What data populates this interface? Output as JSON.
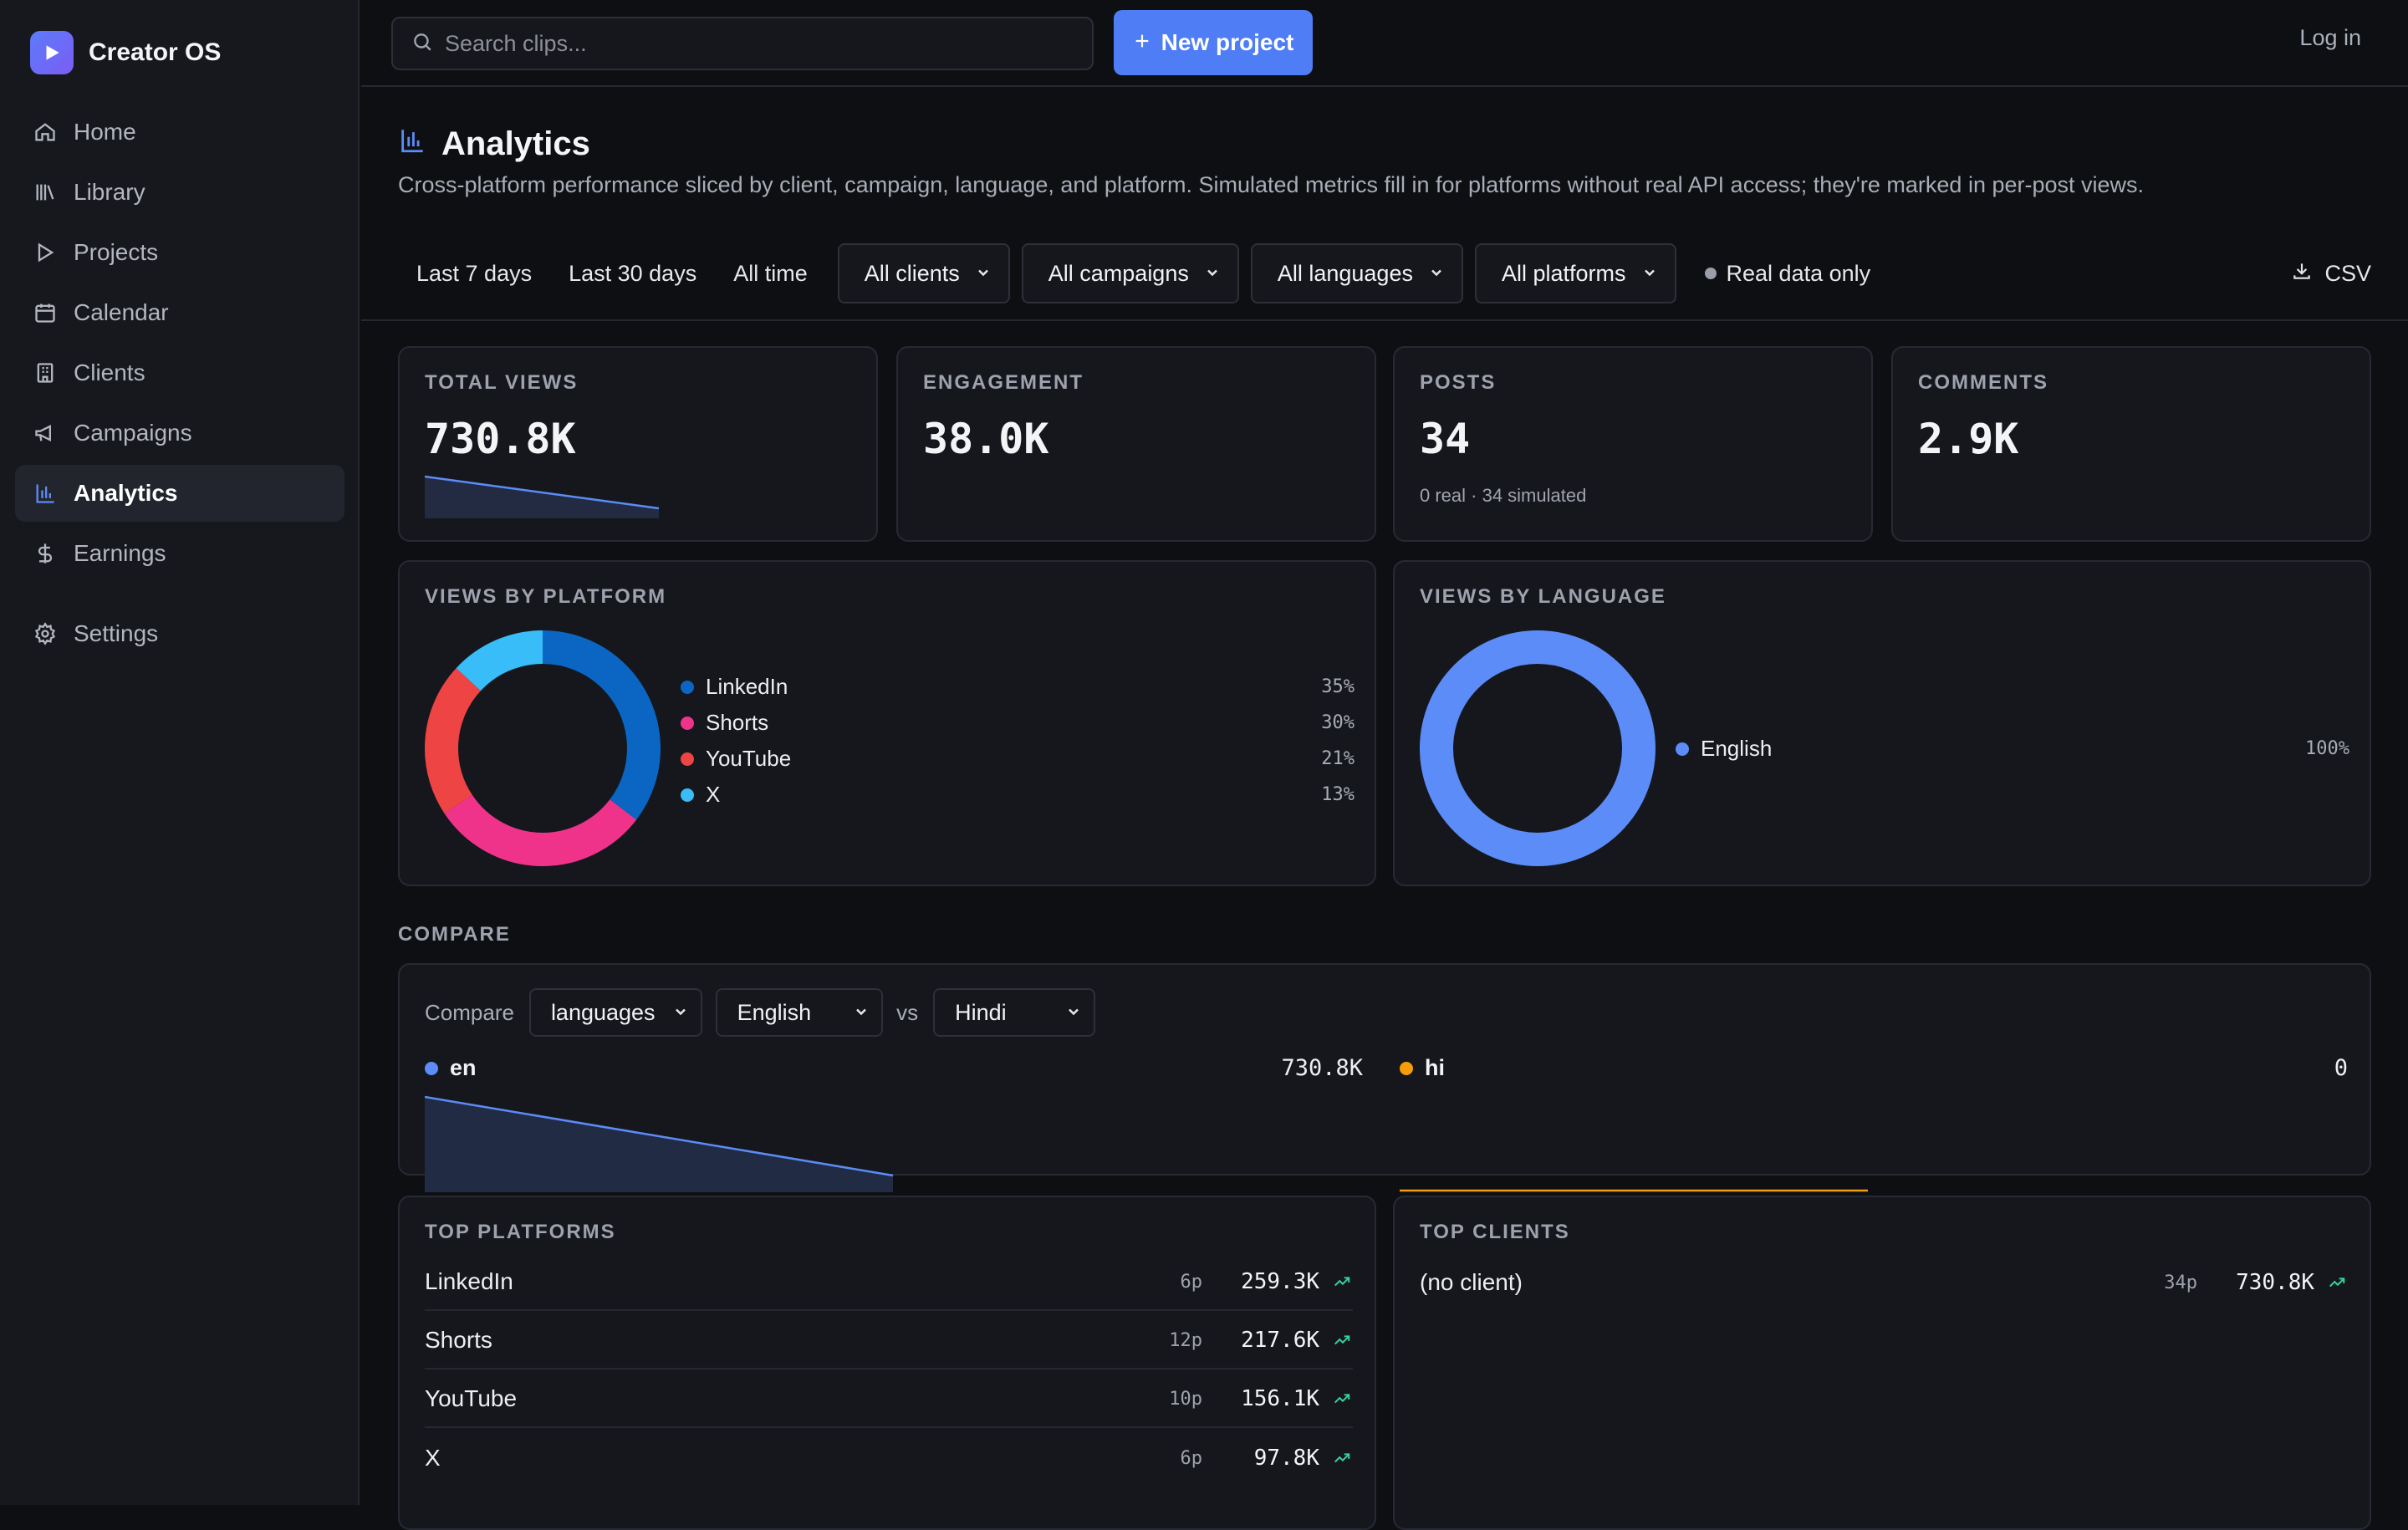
{
  "app": {
    "name": "Creator OS"
  },
  "sidebar": {
    "items": [
      {
        "label": "Home",
        "icon": "home-icon"
      },
      {
        "label": "Library",
        "icon": "library-icon"
      },
      {
        "label": "Projects",
        "icon": "play-icon"
      },
      {
        "label": "Calendar",
        "icon": "calendar-icon"
      },
      {
        "label": "Clients",
        "icon": "building-icon"
      },
      {
        "label": "Campaigns",
        "icon": "megaphone-icon"
      },
      {
        "label": "Analytics",
        "icon": "bar-chart-icon",
        "active": true
      },
      {
        "label": "Earnings",
        "icon": "dollar-icon"
      }
    ],
    "settings": {
      "label": "Settings",
      "icon": "gear-icon"
    }
  },
  "topbar": {
    "search_placeholder": "Search clips...",
    "new_project": "New project",
    "login": "Log in"
  },
  "page": {
    "title": "Analytics",
    "description": "Cross-platform performance sliced by client, campaign, language, and platform. Simulated metrics fill in for platforms without real API access; they're marked in per-post views."
  },
  "filters": {
    "ranges": [
      "Last 7 days",
      "Last 30 days",
      "All time"
    ],
    "clients": "All clients",
    "campaigns": "All campaigns",
    "languages": "All languages",
    "platforms": "All platforms",
    "real_only": "Real data only",
    "csv": "CSV"
  },
  "stats": {
    "total_views": {
      "label": "TOTAL VIEWS",
      "value": "730.8K"
    },
    "engagement": {
      "label": "ENGAGEMENT",
      "value": "38.0K"
    },
    "posts": {
      "label": "POSTS",
      "value": "34",
      "sub": "0 real · 34 simulated"
    },
    "comments": {
      "label": "COMMENTS",
      "value": "2.9K"
    }
  },
  "views_by_platform": {
    "label": "VIEWS BY PLATFORM",
    "items": [
      {
        "name": "LinkedIn",
        "pct": "35%",
        "value": 35,
        "color": "#0a66c2"
      },
      {
        "name": "Shorts",
        "pct": "30%",
        "value": 30,
        "color": "#f0338a"
      },
      {
        "name": "YouTube",
        "pct": "21%",
        "value": 21,
        "color": "#ef4444"
      },
      {
        "name": "X",
        "pct": "13%",
        "value": 13,
        "color": "#38bdf8"
      }
    ]
  },
  "views_by_language": {
    "label": "VIEWS BY LANGUAGE",
    "items": [
      {
        "name": "English",
        "pct": "100%",
        "value": 100,
        "color": "#5b8cf7"
      }
    ]
  },
  "compare": {
    "section_label": "COMPARE",
    "label": "Compare",
    "dimension": "languages",
    "left_option": "English",
    "vs": "vs",
    "right_option": "Hindi",
    "series": [
      {
        "code": "en",
        "total": "730.8K",
        "color": "#5b8cf7"
      },
      {
        "code": "hi",
        "total": "0",
        "color": "#f59e0b"
      }
    ]
  },
  "top_platforms": {
    "label": "TOP PLATFORMS",
    "rows": [
      {
        "name": "LinkedIn",
        "posts": "6p",
        "views": "259.3K"
      },
      {
        "name": "Shorts",
        "posts": "12p",
        "views": "217.6K"
      },
      {
        "name": "YouTube",
        "posts": "10p",
        "views": "156.1K"
      },
      {
        "name": "X",
        "posts": "6p",
        "views": "97.8K"
      }
    ]
  },
  "top_clients": {
    "label": "TOP CLIENTS",
    "rows": [
      {
        "name": "(no client)",
        "posts": "34p",
        "views": "730.8K"
      }
    ]
  },
  "colors": {
    "accent": "#4f7df6",
    "trend_up": "#34d399"
  }
}
